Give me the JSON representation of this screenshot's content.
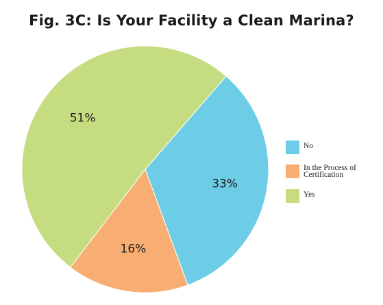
{
  "chart_data": {
    "type": "pie",
    "title": "Fig. 3C: Is Your Facility a Clean Marina?",
    "slices": [
      {
        "label": "No",
        "value": 33,
        "display": "33%",
        "color": "#6ecde6"
      },
      {
        "label": "In the Process of Certification",
        "value": 16,
        "display": "16%",
        "color": "#f8ae73"
      },
      {
        "label": "Yes",
        "value": 51,
        "display": "51%",
        "color": "#c6dc80"
      }
    ],
    "legend_position": "right",
    "start_angle_deg": 41,
    "direction": "clockwise"
  }
}
